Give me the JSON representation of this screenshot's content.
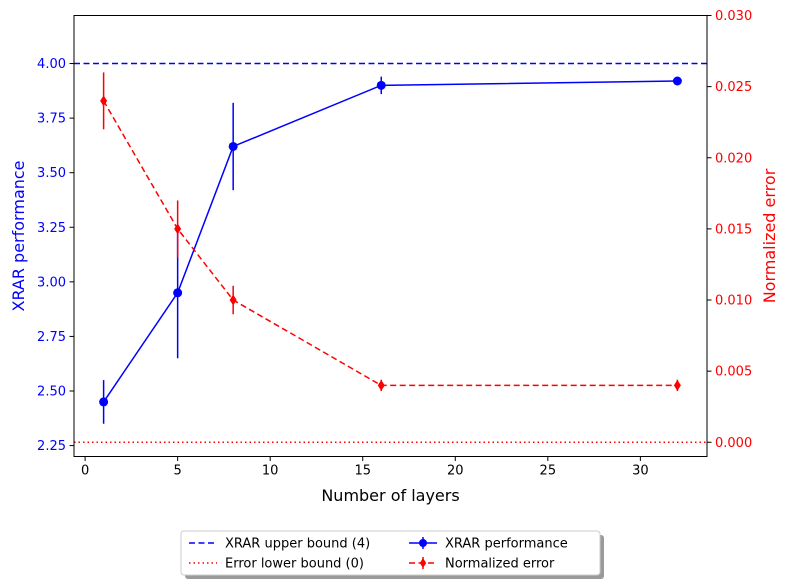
{
  "chart_data": {
    "type": "line",
    "xlabel": "Number of layers",
    "ylabel_left": "XRAR performance",
    "ylabel_right": "Normalized error",
    "xlim": [
      -0.6,
      33.6
    ],
    "ylim_left": [
      2.2,
      4.22
    ],
    "ylim_right": [
      -0.001,
      0.03
    ],
    "x_ticks": [
      "0",
      "5",
      "10",
      "15",
      "20",
      "25",
      "30"
    ],
    "y_left_ticks": [
      "2.25",
      "2.50",
      "2.75",
      "3.00",
      "3.25",
      "3.50",
      "3.75",
      "4.00"
    ],
    "y_right_ticks": [
      "0.000",
      "0.005",
      "0.010",
      "0.015",
      "0.020",
      "0.025",
      "0.030"
    ],
    "grid": false,
    "legend_position": "bottom-center, below plot",
    "series": [
      {
        "name": "XRAR performance",
        "axis": "left",
        "color": "#0000ff",
        "marker": "circle",
        "line_style": "solid",
        "x": [
          1,
          5,
          8,
          16,
          32
        ],
        "y": [
          2.45,
          2.95,
          3.62,
          3.9,
          3.92
        ],
        "yerr": [
          0.1,
          0.3,
          0.2,
          0.04,
          0.0
        ]
      },
      {
        "name": "Normalized error",
        "axis": "right",
        "color": "#ff0000",
        "marker": "diamond",
        "line_style": "dashed",
        "x": [
          1,
          5,
          8,
          16,
          32
        ],
        "y": [
          0.024,
          0.015,
          0.01,
          0.004,
          0.004
        ],
        "yerr": [
          0.002,
          0.002,
          0.001,
          0.0004,
          0.0004
        ]
      }
    ],
    "reference_lines": [
      {
        "name": "XRAR upper bound (4)",
        "axis": "left",
        "y": 4.0,
        "color": "#0000ff",
        "line_style": "dashed"
      },
      {
        "name": "Error lower bound (0)",
        "axis": "right",
        "y": 0.0,
        "color": "#ff0000",
        "line_style": "dotted"
      }
    ],
    "legend": {
      "entries": [
        {
          "label": "XRAR upper bound (4)",
          "color": "#0000ff",
          "style": "dashed",
          "marker": "none"
        },
        {
          "label": "Error lower bound (0)",
          "color": "#ff0000",
          "style": "dotted",
          "marker": "none"
        },
        {
          "label": "XRAR performance",
          "color": "#0000ff",
          "style": "solid",
          "marker": "circle"
        },
        {
          "label": "Normalized error",
          "color": "#ff0000",
          "style": "dashed",
          "marker": "diamond"
        }
      ]
    }
  }
}
